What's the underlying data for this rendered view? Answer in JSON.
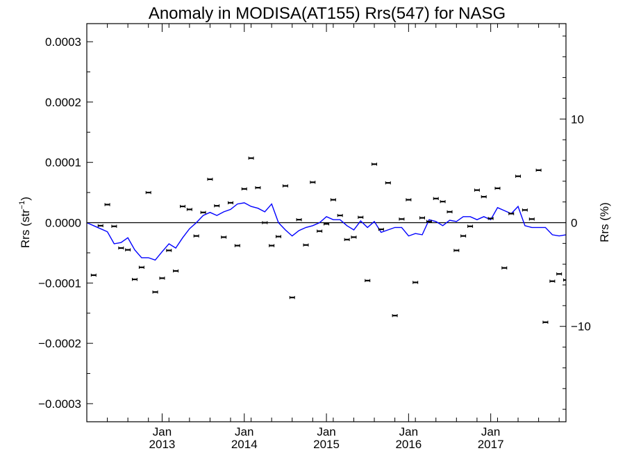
{
  "chart_data": {
    "type": "scatter",
    "title": "Anomaly in MODISA(AT155) Rrs(547) for NASG",
    "ylabel_left": {
      "base": "Rrs (str",
      "sup": "−1",
      "close": ")"
    },
    "ylabel_right": "Rrs (%)",
    "xlim": [
      2012.0,
      2017.833
    ],
    "ylim": [
      -0.00033,
      0.00033
    ],
    "right_ylim": [
      -19.2,
      19.2
    ],
    "left_ticks": [
      {
        "value": 0.0003,
        "label": "0.0003"
      },
      {
        "value": 0.0002,
        "label": "0.0002"
      },
      {
        "value": 0.0001,
        "label": "0.0001"
      },
      {
        "value": 0.0,
        "label": "0.0000"
      },
      {
        "value": -0.0001,
        "label": "−0.0001"
      },
      {
        "value": -0.0002,
        "label": "−0.0002"
      },
      {
        "value": -0.0003,
        "label": "−0.0003"
      }
    ],
    "right_ticks": [
      {
        "value": 10,
        "label": "10"
      },
      {
        "value": 0,
        "label": "0"
      },
      {
        "value": -10,
        "label": "−10"
      }
    ],
    "x_ticks": [
      {
        "value": 2012.917,
        "month": "Jan",
        "year": "2013"
      },
      {
        "value": 2013.917,
        "month": "Jan",
        "year": "2014"
      },
      {
        "value": 2014.917,
        "month": "Jan",
        "year": "2015"
      },
      {
        "value": 2015.917,
        "month": "Jan",
        "year": "2016"
      },
      {
        "value": 2016.917,
        "month": "Jan",
        "year": "2017"
      }
    ],
    "zero_line": true,
    "series": [
      {
        "style": "points-with-errorbars",
        "color": "#000000",
        "x": [
          2012.083,
          2012.167,
          2012.25,
          2012.333,
          2012.417,
          2012.5,
          2012.583,
          2012.667,
          2012.75,
          2012.833,
          2012.917,
          2013.0,
          2013.083,
          2013.167,
          2013.25,
          2013.333,
          2013.417,
          2013.5,
          2013.583,
          2013.667,
          2013.75,
          2013.833,
          2013.917,
          2014.0,
          2014.083,
          2014.167,
          2014.25,
          2014.333,
          2014.417,
          2014.5,
          2014.583,
          2014.667,
          2014.75,
          2014.833,
          2014.917,
          2015.0,
          2015.083,
          2015.167,
          2015.25,
          2015.333,
          2015.417,
          2015.5,
          2015.583,
          2015.667,
          2015.75,
          2015.833,
          2015.917,
          2016.0,
          2016.083,
          2016.167,
          2016.25,
          2016.333,
          2016.417,
          2016.5,
          2016.583,
          2016.667,
          2016.75,
          2016.833,
          2016.917,
          2017.0,
          2017.083,
          2017.167,
          2017.25,
          2017.333,
          2017.417,
          2017.5,
          2017.583,
          2017.667,
          2017.75,
          2017.833
        ],
        "y": [
          -8.7e-05,
          -5e-06,
          3e-05,
          -6e-06,
          -4.2e-05,
          -4.5e-05,
          -9.4e-05,
          -7.4e-05,
          5e-05,
          -0.000115,
          -9.2e-05,
          -4.6e-05,
          -8e-05,
          2.7e-05,
          2.2e-05,
          -2.2e-05,
          1.7e-05,
          7.2e-05,
          2.8e-05,
          -2.4e-05,
          3.3e-05,
          -3.8e-05,
          5.6e-05,
          0.000107,
          5.8e-05,
          0.0,
          -3.8e-05,
          -2.3e-05,
          6.1e-05,
          -0.000124,
          5e-06,
          -3.7e-05,
          6.7e-05,
          -1.4e-05,
          -2e-06,
          3.8e-05,
          1.2e-05,
          -2.8e-05,
          -2.4e-05,
          9e-06,
          -9.6e-05,
          9.7e-05,
          -1.1e-05,
          6.6e-05,
          -0.000154,
          6e-06,
          3.8e-05,
          -9.9e-05,
          8e-06,
          2e-06,
          4e-05,
          3.5e-05,
          1.8e-05,
          -4.6e-05,
          -2.2e-05,
          -6e-06,
          5.4e-05,
          4.3e-05,
          7e-06,
          5.7e-05,
          -7.5e-05,
          1.5e-05,
          7.7e-05,
          2.1e-05,
          6e-06,
          8.7e-05,
          -0.000165,
          -9.7e-05,
          -8.5e-05,
          -9.5e-05
        ]
      },
      {
        "style": "line",
        "color": "#0000ff",
        "x": [
          2012.0,
          2012.083,
          2012.167,
          2012.25,
          2012.333,
          2012.417,
          2012.5,
          2012.583,
          2012.667,
          2012.75,
          2012.833,
          2012.917,
          2013.0,
          2013.083,
          2013.167,
          2013.25,
          2013.333,
          2013.417,
          2013.5,
          2013.583,
          2013.667,
          2013.75,
          2013.833,
          2013.917,
          2014.0,
          2014.083,
          2014.167,
          2014.25,
          2014.333,
          2014.417,
          2014.5,
          2014.583,
          2014.667,
          2014.75,
          2014.833,
          2014.917,
          2015.0,
          2015.083,
          2015.167,
          2015.25,
          2015.333,
          2015.417,
          2015.5,
          2015.583,
          2015.667,
          2015.75,
          2015.833,
          2015.917,
          2016.0,
          2016.083,
          2016.167,
          2016.25,
          2016.333,
          2016.417,
          2016.5,
          2016.583,
          2016.667,
          2016.75,
          2016.833,
          2016.917,
          2017.0,
          2017.083,
          2017.167,
          2017.25,
          2017.333,
          2017.417,
          2017.5,
          2017.583,
          2017.667,
          2017.75,
          2017.833
        ],
        "y": [
          0.0,
          -5e-06,
          -1e-05,
          -1.5e-05,
          -3.5e-05,
          -3.3e-05,
          -2.5e-05,
          -4.5e-05,
          -5.8e-05,
          -5.8e-05,
          -6.2e-05,
          -4.8e-05,
          -3.5e-05,
          -4.2e-05,
          -2.5e-05,
          -1e-05,
          0.0,
          1.2e-05,
          1.7e-05,
          1.2e-05,
          1.8e-05,
          2.2e-05,
          3.1e-05,
          3.3e-05,
          2.7e-05,
          2.4e-05,
          1.8e-05,
          3.1e-05,
          0.0,
          -1.2e-05,
          -2.2e-05,
          -1.3e-05,
          -8e-06,
          -5e-06,
          0.0,
          1e-05,
          5e-06,
          5e-06,
          -5e-06,
          -1.2e-05,
          3e-06,
          -8e-06,
          2e-06,
          -1.6e-05,
          -1.2e-05,
          -8e-06,
          -8e-06,
          -2.2e-05,
          -1.8e-05,
          -2e-05,
          5e-06,
          2e-06,
          -5e-06,
          4e-06,
          2e-06,
          1e-05,
          1e-05,
          5e-06,
          1e-05,
          5e-06,
          2.5e-05,
          2e-05,
          1.5e-05,
          2.7e-05,
          -5e-06,
          -8e-06,
          -8e-06,
          -8e-06,
          -2e-05,
          -2.2e-05,
          -2e-05
        ]
      }
    ]
  }
}
